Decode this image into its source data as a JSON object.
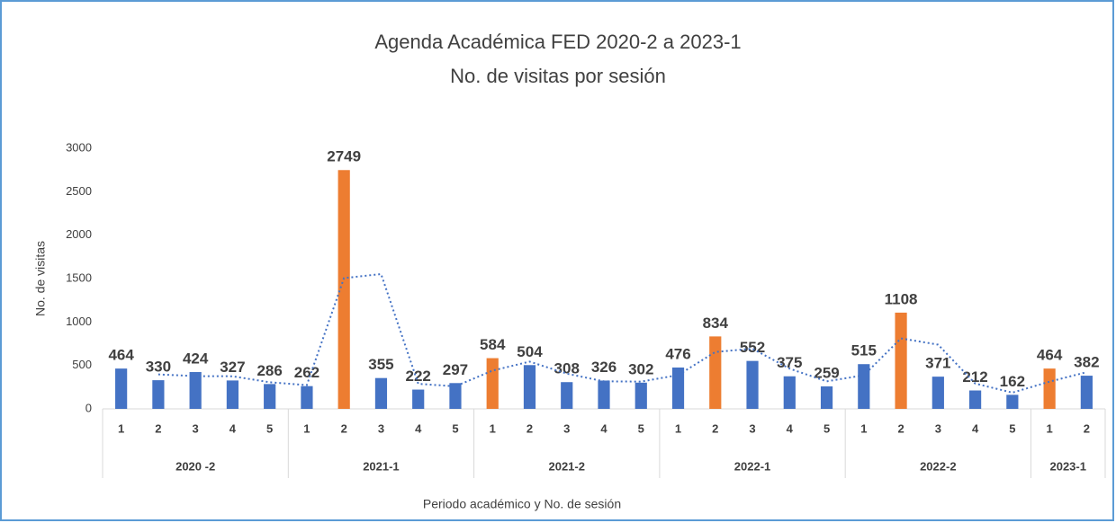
{
  "chart_data": {
    "type": "bar",
    "title": "Agenda Académica FED 2020-2 a 2023-1",
    "subtitle": "No. de visitas por sesión",
    "y_label": "No. de visitas",
    "x_label": "Periodo académico y No. de sesión",
    "ylim": [
      0,
      3000
    ],
    "yticks": [
      0,
      500,
      1000,
      1500,
      2000,
      2500,
      3000
    ],
    "grid": false,
    "trendline": {
      "type": "moving_average",
      "period": 2,
      "color": "#4472c4"
    },
    "groups": [
      {
        "label": "2020 -2",
        "categories": [
          "1",
          "2",
          "3",
          "4",
          "5"
        ],
        "values": [
          464,
          330,
          424,
          327,
          286
        ],
        "colors": [
          "#4472c4",
          "#4472c4",
          "#4472c4",
          "#4472c4",
          "#4472c4"
        ]
      },
      {
        "label": "2021-1",
        "categories": [
          "1",
          "2",
          "3",
          "4",
          "5"
        ],
        "values": [
          262,
          2749,
          355,
          222,
          297
        ],
        "colors": [
          "#4472c4",
          "#ed7d31",
          "#4472c4",
          "#4472c4",
          "#4472c4"
        ]
      },
      {
        "label": "2021-2",
        "categories": [
          "1",
          "2",
          "3",
          "4",
          "5"
        ],
        "values": [
          584,
          504,
          308,
          326,
          302
        ],
        "colors": [
          "#ed7d31",
          "#4472c4",
          "#4472c4",
          "#4472c4",
          "#4472c4"
        ]
      },
      {
        "label": "2022-1",
        "categories": [
          "1",
          "2",
          "3",
          "4",
          "5"
        ],
        "values": [
          476,
          834,
          552,
          375,
          259
        ],
        "colors": [
          "#4472c4",
          "#ed7d31",
          "#4472c4",
          "#4472c4",
          "#4472c4"
        ]
      },
      {
        "label": "2022-2",
        "categories": [
          "1",
          "2",
          "3",
          "4",
          "5"
        ],
        "values": [
          515,
          1108,
          371,
          212,
          162
        ],
        "colors": [
          "#4472c4",
          "#ed7d31",
          "#4472c4",
          "#4472c4",
          "#4472c4"
        ]
      },
      {
        "label": "2023-1",
        "categories": [
          "1",
          "2"
        ],
        "values": [
          464,
          382
        ],
        "colors": [
          "#ed7d31",
          "#4472c4"
        ]
      }
    ]
  }
}
